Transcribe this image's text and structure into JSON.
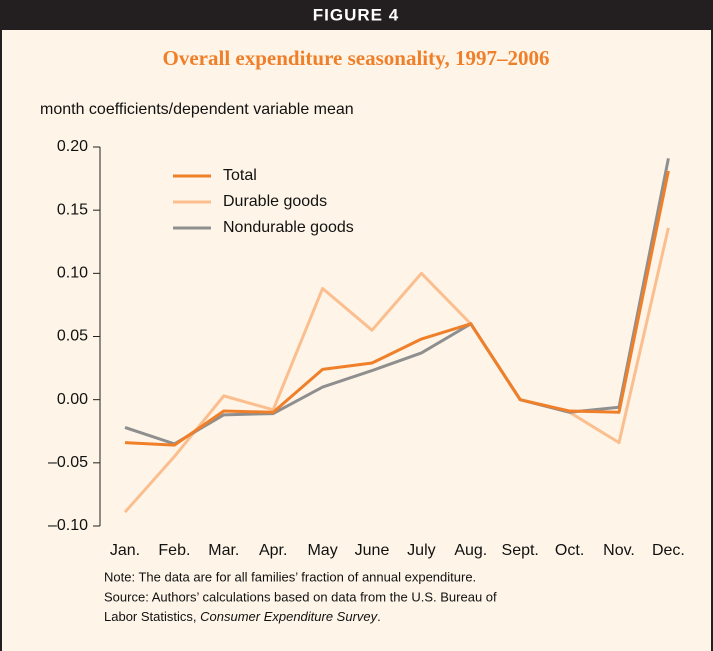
{
  "chart_data": {
    "type": "line",
    "figure_label": "FIGURE 4",
    "title": "Overall expenditure seasonality, 1997–2006",
    "y_axis_label": "month coefficients/dependent variable mean",
    "categories": [
      "Jan.",
      "Feb.",
      "Mar.",
      "Apr.",
      "May",
      "June",
      "July",
      "Aug.",
      "Sept.",
      "Oct.",
      "Nov.",
      "Dec."
    ],
    "series": [
      {
        "name": "Total",
        "color": "#f07f2a",
        "values": [
          -0.034,
          -0.036,
          -0.009,
          -0.01,
          0.024,
          0.029,
          0.048,
          0.06,
          0.0,
          -0.009,
          -0.01,
          0.181
        ]
      },
      {
        "name": "Durable goods",
        "color": "#fbbf8f",
        "values": [
          -0.089,
          -0.045,
          0.003,
          -0.008,
          0.088,
          0.055,
          0.1,
          0.06,
          0.0,
          -0.01,
          -0.034,
          0.136
        ]
      },
      {
        "name": "Nondurable goods",
        "color": "#8f8f8f",
        "values": [
          -0.022,
          -0.035,
          -0.012,
          -0.011,
          0.01,
          0.023,
          0.037,
          0.06,
          0.0,
          -0.01,
          -0.006,
          0.191
        ]
      }
    ],
    "ylim": [
      -0.1,
      0.2
    ],
    "yticks": [
      {
        "value": -0.1,
        "label": "–0.10"
      },
      {
        "value": -0.05,
        "label": "–0.05"
      },
      {
        "value": 0.0,
        "label": "0.00"
      },
      {
        "value": 0.05,
        "label": "0.05"
      },
      {
        "value": 0.1,
        "label": "0.10"
      },
      {
        "value": 0.15,
        "label": "0.15"
      },
      {
        "value": 0.2,
        "label": "0.20"
      }
    ],
    "grid": false,
    "legend": "upper left",
    "notes": {
      "note": "Note: The data are for all families’ fraction of annual expenditure.",
      "source_line1": "Source: Authors’ calculations based on data from the U.S. Bureau of",
      "source_line2": "Labor Statistics, ",
      "source_italic": "Consumer Expenditure Survey",
      "source_end": "."
    }
  }
}
